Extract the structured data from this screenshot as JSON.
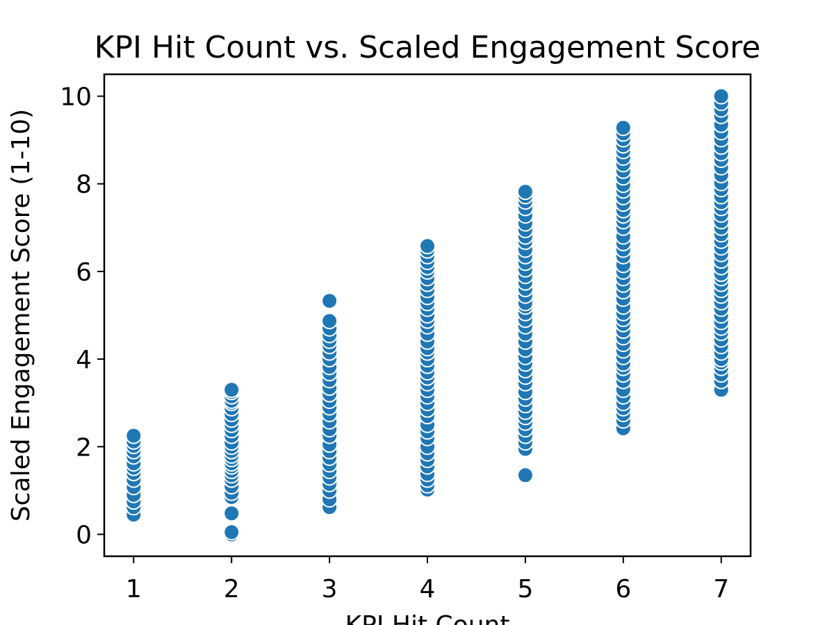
{
  "chart_data": {
    "type": "scatter",
    "title": "KPI Hit Count vs. Scaled Engagement Score",
    "xlabel": "KPI Hit Count",
    "ylabel": "Scaled Engagement Score (1-10)",
    "xlim": [
      0.7,
      7.3
    ],
    "ylim": [
      -0.5,
      10.5
    ],
    "xticks": [
      1,
      2,
      3,
      4,
      5,
      6,
      7
    ],
    "yticks": [
      0,
      2,
      4,
      6,
      8,
      10
    ],
    "grid": false,
    "legend": "none",
    "marker_color": "#1f77b4",
    "marker_edge_color": "#ffffff",
    "series": [
      {
        "points": [
          [
            1,
            0.45
          ],
          [
            1,
            0.62
          ],
          [
            1,
            0.75
          ],
          [
            1,
            0.9
          ],
          [
            1,
            1.08
          ],
          [
            1,
            1.25
          ],
          [
            1,
            1.4
          ],
          [
            1,
            1.52
          ],
          [
            1,
            1.62
          ],
          [
            1,
            1.78
          ],
          [
            1,
            1.9
          ],
          [
            1,
            2.02
          ],
          [
            1,
            2.12
          ],
          [
            1,
            2.25
          ],
          [
            2,
            0.0
          ],
          [
            2,
            0.05
          ],
          [
            2,
            0.48
          ],
          [
            2,
            0.85
          ],
          [
            2,
            0.95
          ],
          [
            2,
            1.1
          ],
          [
            2,
            1.25
          ],
          [
            2,
            1.35
          ],
          [
            2,
            1.45
          ],
          [
            2,
            1.55
          ],
          [
            2,
            1.62
          ],
          [
            2,
            1.72
          ],
          [
            2,
            1.8
          ],
          [
            2,
            1.9
          ],
          [
            2,
            2.0
          ],
          [
            2,
            2.1
          ],
          [
            2,
            2.25
          ],
          [
            2,
            2.38
          ],
          [
            2,
            2.5
          ],
          [
            2,
            2.62
          ],
          [
            2,
            2.75
          ],
          [
            2,
            2.88
          ],
          [
            2,
            3.0
          ],
          [
            2,
            3.05
          ],
          [
            2,
            3.15
          ],
          [
            2,
            3.25
          ],
          [
            2,
            3.3
          ],
          [
            3,
            0.62
          ],
          [
            3,
            0.8
          ],
          [
            3,
            1.0
          ],
          [
            3,
            1.15
          ],
          [
            3,
            1.3
          ],
          [
            3,
            1.45
          ],
          [
            3,
            1.6
          ],
          [
            3,
            1.75
          ],
          [
            3,
            1.9
          ],
          [
            3,
            2.05
          ],
          [
            3,
            2.25
          ],
          [
            3,
            2.4
          ],
          [
            3,
            2.58
          ],
          [
            3,
            2.75
          ],
          [
            3,
            2.9
          ],
          [
            3,
            3.05
          ],
          [
            3,
            3.2
          ],
          [
            3,
            3.35
          ],
          [
            3,
            3.52
          ],
          [
            3,
            3.68
          ],
          [
            3,
            3.82
          ],
          [
            3,
            4.0
          ],
          [
            3,
            4.15
          ],
          [
            3,
            4.3
          ],
          [
            3,
            4.42
          ],
          [
            3,
            4.55
          ],
          [
            3,
            4.7
          ],
          [
            3,
            4.87
          ],
          [
            3,
            5.33
          ],
          [
            4,
            1.02
          ],
          [
            4,
            1.12
          ],
          [
            4,
            1.25
          ],
          [
            4,
            1.38
          ],
          [
            4,
            1.55
          ],
          [
            4,
            1.7
          ],
          [
            4,
            1.85
          ],
          [
            4,
            2.0
          ],
          [
            4,
            2.2
          ],
          [
            4,
            2.35
          ],
          [
            4,
            2.5
          ],
          [
            4,
            2.7
          ],
          [
            4,
            2.85
          ],
          [
            4,
            3.0
          ],
          [
            4,
            3.15
          ],
          [
            4,
            3.3
          ],
          [
            4,
            3.45
          ],
          [
            4,
            3.58
          ],
          [
            4,
            3.7
          ],
          [
            4,
            3.85
          ],
          [
            4,
            4.0
          ],
          [
            4,
            4.15
          ],
          [
            4,
            4.25
          ],
          [
            4,
            4.4
          ],
          [
            4,
            4.58
          ],
          [
            4,
            4.75
          ],
          [
            4,
            4.88
          ],
          [
            4,
            5.0
          ],
          [
            4,
            5.15
          ],
          [
            4,
            5.28
          ],
          [
            4,
            5.42
          ],
          [
            4,
            5.58
          ],
          [
            4,
            5.72
          ],
          [
            4,
            5.85
          ],
          [
            4,
            6.0
          ],
          [
            4,
            6.1
          ],
          [
            4,
            6.22
          ],
          [
            4,
            6.35
          ],
          [
            4,
            6.48
          ],
          [
            4,
            6.58
          ],
          [
            5,
            1.35
          ],
          [
            5,
            1.95
          ],
          [
            5,
            2.1
          ],
          [
            5,
            2.25
          ],
          [
            5,
            2.4
          ],
          [
            5,
            2.55
          ],
          [
            5,
            2.68
          ],
          [
            5,
            2.8
          ],
          [
            5,
            2.95
          ],
          [
            5,
            3.1
          ],
          [
            5,
            3.25
          ],
          [
            5,
            3.45
          ],
          [
            5,
            3.6
          ],
          [
            5,
            3.75
          ],
          [
            5,
            3.9
          ],
          [
            5,
            4.05
          ],
          [
            5,
            4.22
          ],
          [
            5,
            4.4
          ],
          [
            5,
            4.58
          ],
          [
            5,
            4.75
          ],
          [
            5,
            4.9
          ],
          [
            5,
            5.05
          ],
          [
            5,
            5.2
          ],
          [
            5,
            5.28
          ],
          [
            5,
            5.45
          ],
          [
            5,
            5.6
          ],
          [
            5,
            5.75
          ],
          [
            5,
            5.9
          ],
          [
            5,
            6.05
          ],
          [
            5,
            6.2
          ],
          [
            5,
            6.35
          ],
          [
            5,
            6.5
          ],
          [
            5,
            6.68
          ],
          [
            5,
            6.8
          ],
          [
            5,
            6.95
          ],
          [
            5,
            7.1
          ],
          [
            5,
            7.28
          ],
          [
            5,
            7.45
          ],
          [
            5,
            7.6
          ],
          [
            5,
            7.72
          ],
          [
            5,
            7.82
          ],
          [
            6,
            2.42
          ],
          [
            6,
            2.6
          ],
          [
            6,
            2.75
          ],
          [
            6,
            2.88
          ],
          [
            6,
            3.0
          ],
          [
            6,
            3.15
          ],
          [
            6,
            3.3
          ],
          [
            6,
            3.5
          ],
          [
            6,
            3.65
          ],
          [
            6,
            3.8
          ],
          [
            6,
            3.9
          ],
          [
            6,
            4.05
          ],
          [
            6,
            4.2
          ],
          [
            6,
            4.35
          ],
          [
            6,
            4.5
          ],
          [
            6,
            4.65
          ],
          [
            6,
            4.8
          ],
          [
            6,
            4.92
          ],
          [
            6,
            5.05
          ],
          [
            6,
            5.2
          ],
          [
            6,
            5.38
          ],
          [
            6,
            5.55
          ],
          [
            6,
            5.7
          ],
          [
            6,
            5.85
          ],
          [
            6,
            6.0
          ],
          [
            6,
            6.15
          ],
          [
            6,
            6.35
          ],
          [
            6,
            6.5
          ],
          [
            6,
            6.65
          ],
          [
            6,
            6.8
          ],
          [
            6,
            7.0
          ],
          [
            6,
            7.15
          ],
          [
            6,
            7.28
          ],
          [
            6,
            7.4
          ],
          [
            6,
            7.55
          ],
          [
            6,
            7.7
          ],
          [
            6,
            7.85
          ],
          [
            6,
            7.98
          ],
          [
            6,
            8.15
          ],
          [
            6,
            8.3
          ],
          [
            6,
            8.45
          ],
          [
            6,
            8.6
          ],
          [
            6,
            8.75
          ],
          [
            6,
            8.88
          ],
          [
            6,
            9.02
          ],
          [
            6,
            9.15
          ],
          [
            6,
            9.28
          ],
          [
            7,
            3.3
          ],
          [
            7,
            3.5
          ],
          [
            7,
            3.65
          ],
          [
            7,
            3.8
          ],
          [
            7,
            3.92
          ],
          [
            7,
            4.0
          ],
          [
            7,
            4.15
          ],
          [
            7,
            4.3
          ],
          [
            7,
            4.45
          ],
          [
            7,
            4.6
          ],
          [
            7,
            4.72
          ],
          [
            7,
            4.85
          ],
          [
            7,
            5.0
          ],
          [
            7,
            5.15
          ],
          [
            7,
            5.3
          ],
          [
            7,
            5.45
          ],
          [
            7,
            5.58
          ],
          [
            7,
            5.72
          ],
          [
            7,
            5.85
          ],
          [
            7,
            5.95
          ],
          [
            7,
            6.1
          ],
          [
            7,
            6.25
          ],
          [
            7,
            6.4
          ],
          [
            7,
            6.55
          ],
          [
            7,
            6.7
          ],
          [
            7,
            6.85
          ],
          [
            7,
            7.0
          ],
          [
            7,
            7.15
          ],
          [
            7,
            7.3
          ],
          [
            7,
            7.45
          ],
          [
            7,
            7.58
          ],
          [
            7,
            7.72
          ],
          [
            7,
            7.88
          ],
          [
            7,
            8.02
          ],
          [
            7,
            8.2
          ],
          [
            7,
            8.38
          ],
          [
            7,
            8.55
          ],
          [
            7,
            8.7
          ],
          [
            7,
            8.85
          ],
          [
            7,
            9.02
          ],
          [
            7,
            9.18
          ],
          [
            7,
            9.35
          ],
          [
            7,
            9.55
          ],
          [
            7,
            9.7
          ],
          [
            7,
            9.85
          ],
          [
            7,
            10.0
          ]
        ]
      }
    ]
  }
}
